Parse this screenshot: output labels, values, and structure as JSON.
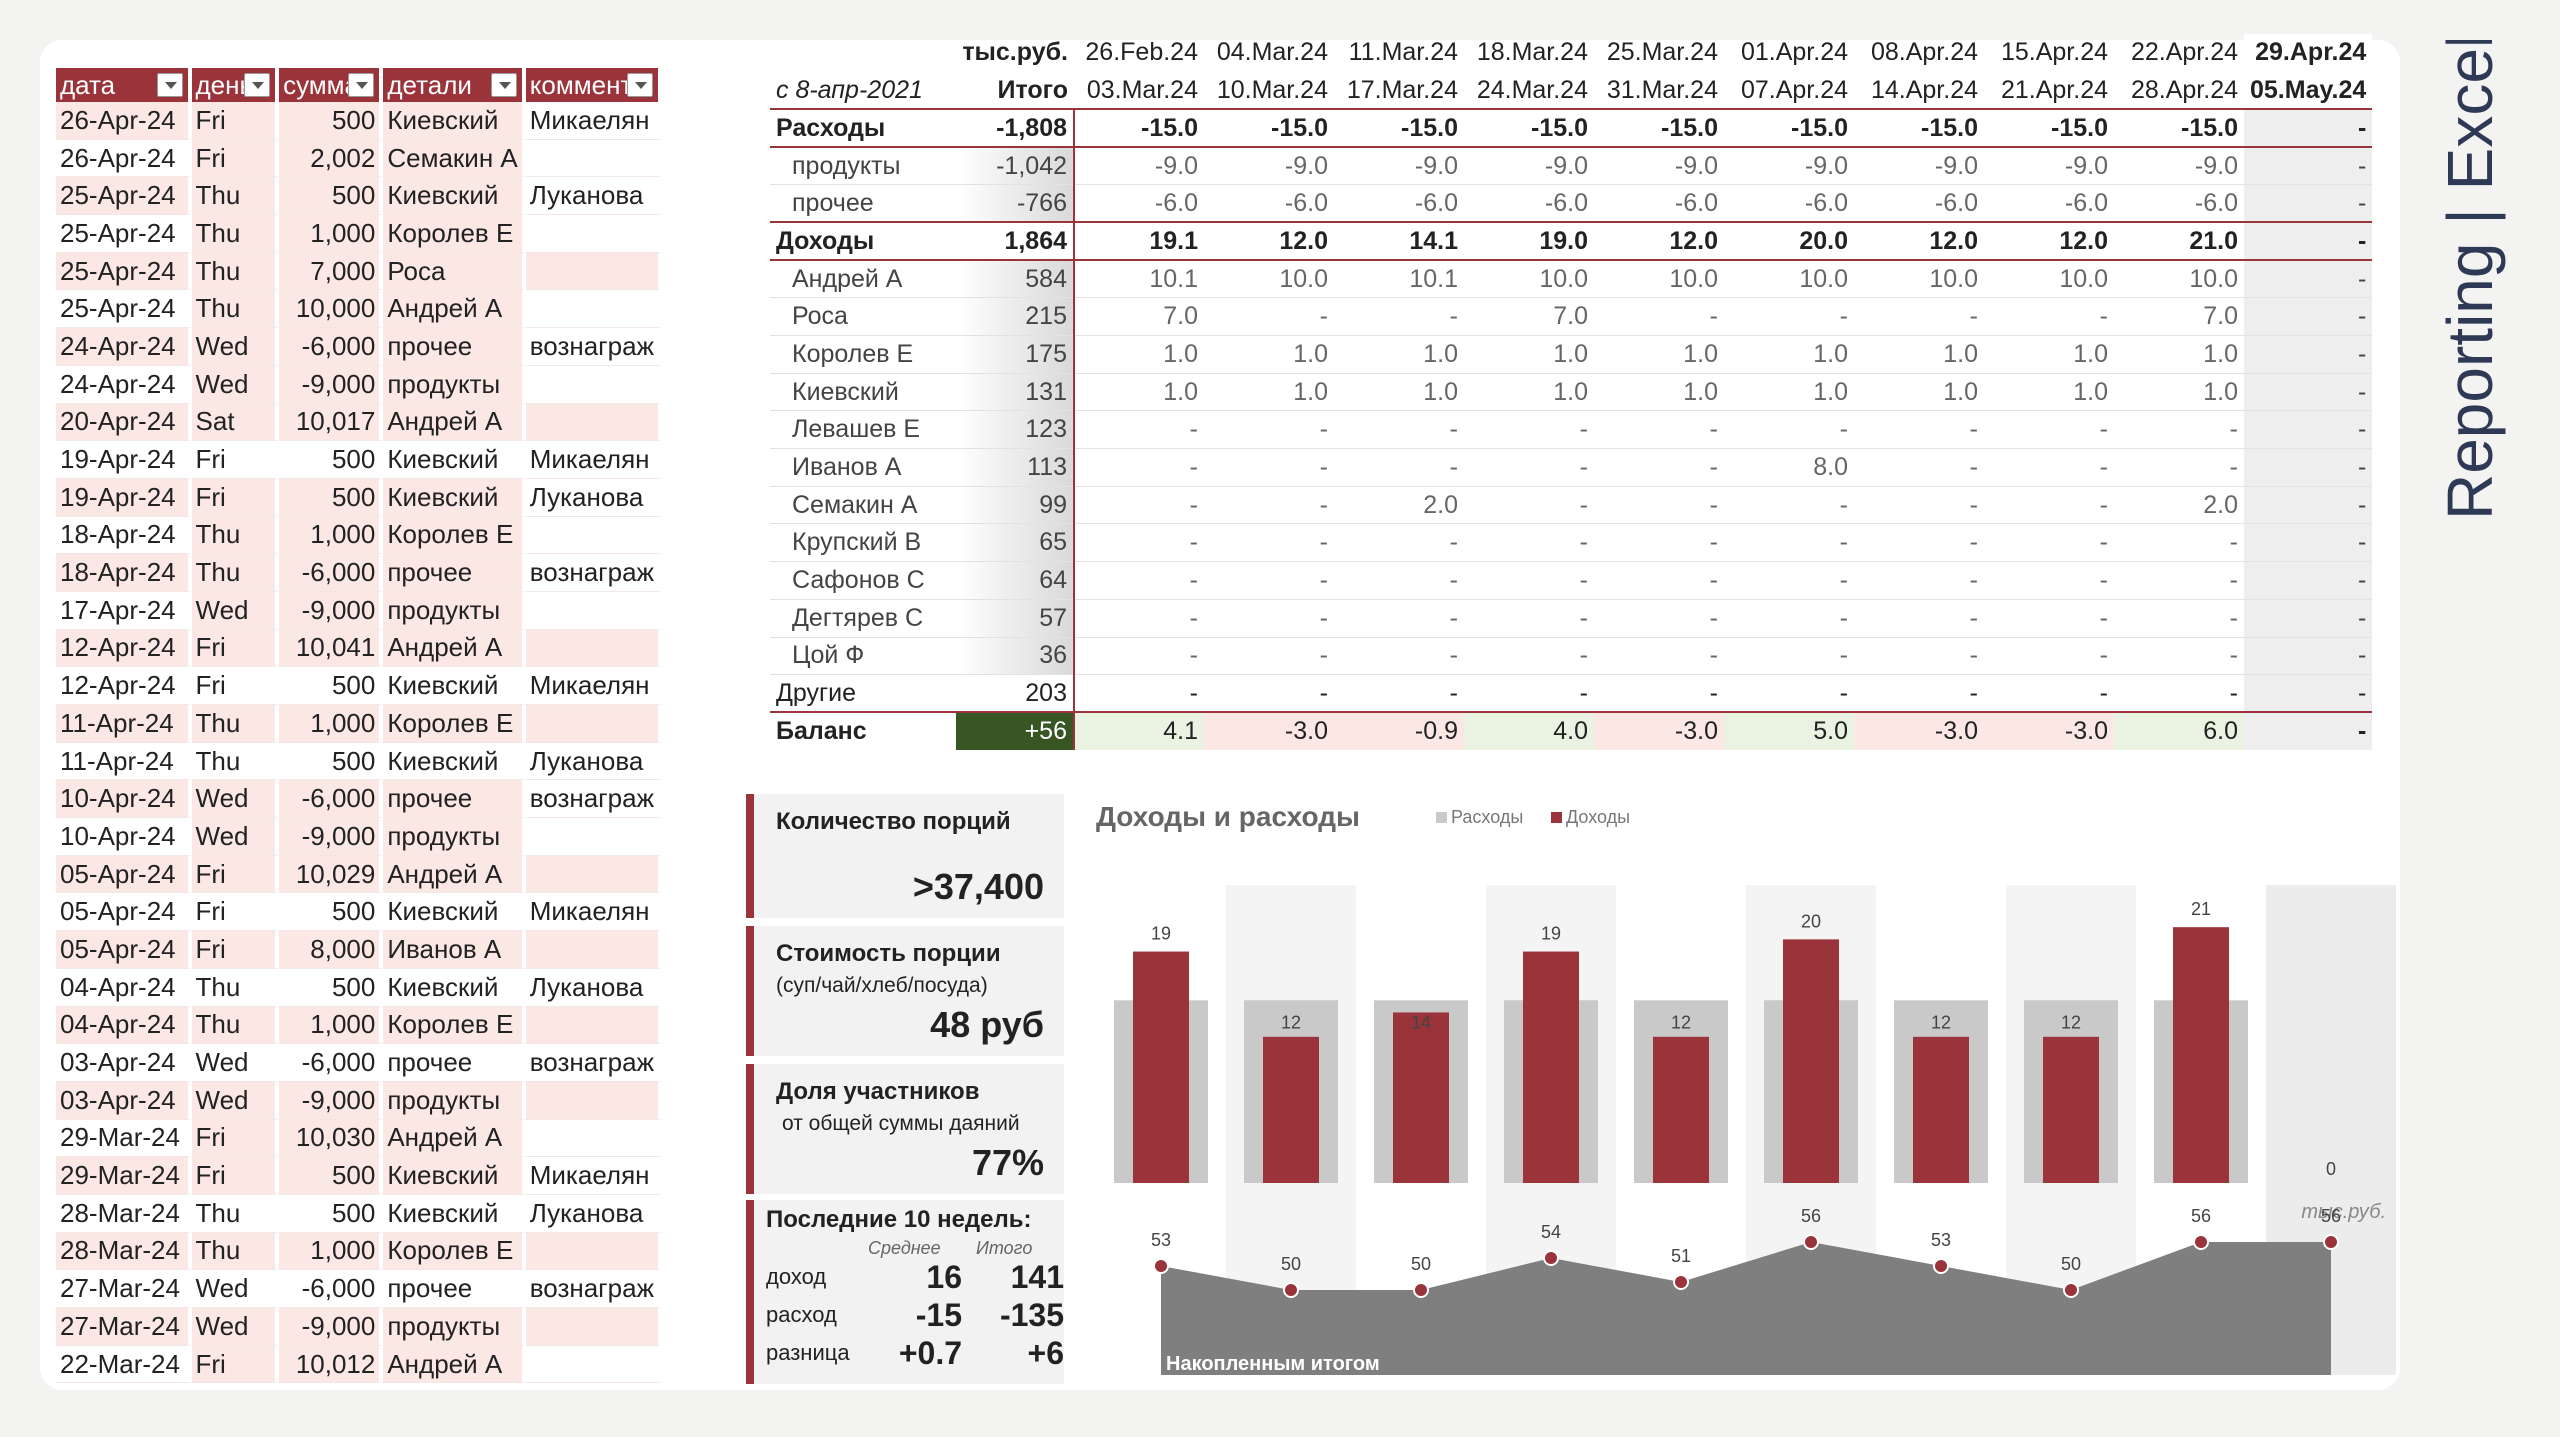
{
  "left_table": {
    "headers": [
      "дата",
      "день",
      "сумма",
      "детали",
      "коммент"
    ],
    "rows": [
      [
        "26-Apr-24",
        "Fri",
        "500",
        "Киевский",
        "Микаелян"
      ],
      [
        "26-Apr-24",
        "Fri",
        "2,002",
        "Семакин А",
        ""
      ],
      [
        "25-Apr-24",
        "Thu",
        "500",
        "Киевский",
        "Луканова"
      ],
      [
        "25-Apr-24",
        "Thu",
        "1,000",
        "Королев Е",
        ""
      ],
      [
        "25-Apr-24",
        "Thu",
        "7,000",
        "Роса",
        ""
      ],
      [
        "25-Apr-24",
        "Thu",
        "10,000",
        "Андрей А",
        ""
      ],
      [
        "24-Apr-24",
        "Wed",
        "-6,000",
        "прочее",
        "вознаграж"
      ],
      [
        "24-Apr-24",
        "Wed",
        "-9,000",
        "продукты",
        ""
      ],
      [
        "20-Apr-24",
        "Sat",
        "10,017",
        "Андрей А",
        ""
      ],
      [
        "19-Apr-24",
        "Fri",
        "500",
        "Киевский",
        "Микаелян"
      ],
      [
        "19-Apr-24",
        "Fri",
        "500",
        "Киевский",
        "Луканова"
      ],
      [
        "18-Apr-24",
        "Thu",
        "1,000",
        "Королев Е",
        ""
      ],
      [
        "18-Apr-24",
        "Thu",
        "-6,000",
        "прочее",
        "вознаграж"
      ],
      [
        "17-Apr-24",
        "Wed",
        "-9,000",
        "продукты",
        ""
      ],
      [
        "12-Apr-24",
        "Fri",
        "10,041",
        "Андрей А",
        ""
      ],
      [
        "12-Apr-24",
        "Fri",
        "500",
        "Киевский",
        "Микаелян"
      ],
      [
        "11-Apr-24",
        "Thu",
        "1,000",
        "Королев Е",
        ""
      ],
      [
        "11-Apr-24",
        "Thu",
        "500",
        "Киевский",
        "Луканова"
      ],
      [
        "10-Apr-24",
        "Wed",
        "-6,000",
        "прочее",
        "вознаграж"
      ],
      [
        "10-Apr-24",
        "Wed",
        "-9,000",
        "продукты",
        ""
      ],
      [
        "05-Apr-24",
        "Fri",
        "10,029",
        "Андрей А",
        ""
      ],
      [
        "05-Apr-24",
        "Fri",
        "500",
        "Киевский",
        "Микаелян"
      ],
      [
        "05-Apr-24",
        "Fri",
        "8,000",
        "Иванов А",
        ""
      ],
      [
        "04-Apr-24",
        "Thu",
        "500",
        "Киевский",
        "Луканова"
      ],
      [
        "04-Apr-24",
        "Thu",
        "1,000",
        "Королев Е",
        ""
      ],
      [
        "03-Apr-24",
        "Wed",
        "-6,000",
        "прочее",
        "вознаграж"
      ],
      [
        "03-Apr-24",
        "Wed",
        "-9,000",
        "продукты",
        ""
      ],
      [
        "29-Mar-24",
        "Fri",
        "10,030",
        "Андрей А",
        ""
      ],
      [
        "29-Mar-24",
        "Fri",
        "500",
        "Киевский",
        "Микаелян"
      ],
      [
        "28-Mar-24",
        "Thu",
        "500",
        "Киевский",
        "Луканова"
      ],
      [
        "28-Mar-24",
        "Thu",
        "1,000",
        "Королев Е",
        ""
      ],
      [
        "27-Mar-24",
        "Wed",
        "-6,000",
        "прочее",
        "вознаграж"
      ],
      [
        "27-Mar-24",
        "Wed",
        "-9,000",
        "продукты",
        ""
      ],
      [
        "22-Mar-24",
        "Fri",
        "10,012",
        "Андрей А",
        ""
      ]
    ]
  },
  "report": {
    "unit": "тыс.руб.",
    "since": "с 8-апр-2021",
    "total_label": "Итого",
    "week_start": [
      "26.Feb.24",
      "04.Mar.24",
      "11.Mar.24",
      "18.Mar.24",
      "25.Mar.24",
      "01.Apr.24",
      "08.Apr.24",
      "15.Apr.24",
      "22.Apr.24",
      "29.Apr.24"
    ],
    "week_end": [
      "03.Mar.24",
      "10.Mar.24",
      "17.Mar.24",
      "24.Mar.24",
      "31.Mar.24",
      "07.Apr.24",
      "14.Apr.24",
      "21.Apr.24",
      "28.Apr.24",
      "05.May.24"
    ],
    "rows": [
      {
        "label": "Расходы",
        "total": "-1,808",
        "vals": [
          "-15.0",
          "-15.0",
          "-15.0",
          "-15.0",
          "-15.0",
          "-15.0",
          "-15.0",
          "-15.0",
          "-15.0",
          "-"
        ],
        "kind": "grp"
      },
      {
        "label": "продукты",
        "total": "-1,042",
        "vals": [
          "-9.0",
          "-9.0",
          "-9.0",
          "-9.0",
          "-9.0",
          "-9.0",
          "-9.0",
          "-9.0",
          "-9.0",
          "-"
        ],
        "kind": "sub"
      },
      {
        "label": "прочее",
        "total": "-766",
        "vals": [
          "-6.0",
          "-6.0",
          "-6.0",
          "-6.0",
          "-6.0",
          "-6.0",
          "-6.0",
          "-6.0",
          "-6.0",
          "-"
        ],
        "kind": "sub"
      },
      {
        "label": "Доходы",
        "total": "1,864",
        "vals": [
          "19.1",
          "12.0",
          "14.1",
          "19.0",
          "12.0",
          "20.0",
          "12.0",
          "12.0",
          "21.0",
          "-"
        ],
        "kind": "grp"
      },
      {
        "label": "Андрей А",
        "total": "584",
        "vals": [
          "10.1",
          "10.0",
          "10.1",
          "10.0",
          "10.0",
          "10.0",
          "10.0",
          "10.0",
          "10.0",
          "-"
        ],
        "kind": "sub"
      },
      {
        "label": "Роса",
        "total": "215",
        "vals": [
          "7.0",
          "-",
          "-",
          "7.0",
          "-",
          "-",
          "-",
          "-",
          "7.0",
          "-"
        ],
        "kind": "sub"
      },
      {
        "label": "Королев Е",
        "total": "175",
        "vals": [
          "1.0",
          "1.0",
          "1.0",
          "1.0",
          "1.0",
          "1.0",
          "1.0",
          "1.0",
          "1.0",
          "-"
        ],
        "kind": "sub"
      },
      {
        "label": "Киевский",
        "total": "131",
        "vals": [
          "1.0",
          "1.0",
          "1.0",
          "1.0",
          "1.0",
          "1.0",
          "1.0",
          "1.0",
          "1.0",
          "-"
        ],
        "kind": "sub"
      },
      {
        "label": "Левашев Е",
        "total": "123",
        "vals": [
          "-",
          "-",
          "-",
          "-",
          "-",
          "-",
          "-",
          "-",
          "-",
          "-"
        ],
        "kind": "sub"
      },
      {
        "label": "Иванов А",
        "total": "113",
        "vals": [
          "-",
          "-",
          "-",
          "-",
          "-",
          "8.0",
          "-",
          "-",
          "-",
          "-"
        ],
        "kind": "sub"
      },
      {
        "label": "Семакин А",
        "total": "99",
        "vals": [
          "-",
          "-",
          "2.0",
          "-",
          "-",
          "-",
          "-",
          "-",
          "2.0",
          "-"
        ],
        "kind": "sub"
      },
      {
        "label": "Крупский В",
        "total": "65",
        "vals": [
          "-",
          "-",
          "-",
          "-",
          "-",
          "-",
          "-",
          "-",
          "-",
          "-"
        ],
        "kind": "sub"
      },
      {
        "label": "Сафонов С",
        "total": "64",
        "vals": [
          "-",
          "-",
          "-",
          "-",
          "-",
          "-",
          "-",
          "-",
          "-",
          "-"
        ],
        "kind": "sub"
      },
      {
        "label": "Дегтярев С",
        "total": "57",
        "vals": [
          "-",
          "-",
          "-",
          "-",
          "-",
          "-",
          "-",
          "-",
          "-",
          "-"
        ],
        "kind": "sub"
      },
      {
        "label": "Цой Ф",
        "total": "36",
        "vals": [
          "-",
          "-",
          "-",
          "-",
          "-",
          "-",
          "-",
          "-",
          "-",
          "-"
        ],
        "kind": "sub"
      },
      {
        "label": "Другие",
        "total": "203",
        "vals": [
          "-",
          "-",
          "-",
          "-",
          "-",
          "-",
          "-",
          "-",
          "-",
          "-"
        ],
        "kind": "oth"
      }
    ],
    "balance": {
      "label": "Баланс",
      "total": "+56",
      "vals": [
        "4.1",
        "-3.0",
        "-0.9",
        "4.0",
        "-3.0",
        "5.0",
        "-3.0",
        "-3.0",
        "6.0",
        "-"
      ]
    }
  },
  "kpi": {
    "portions_title": "Количество порций",
    "portions_value": ">37,400",
    "cost_title": "Стоимость порции",
    "cost_sub": "(суп/чай/хлеб/посуда)",
    "cost_value": "48 руб",
    "share_title": "Доля участников",
    "share_sub": "от общей суммы даяний",
    "share_value": "77%",
    "weeks_title": "Последние 10 недель:",
    "col_avg": "Среднее",
    "col_total": "Итого",
    "rows": [
      [
        "доход",
        "16",
        "141"
      ],
      [
        "расход",
        "-15",
        "-135"
      ],
      [
        "разница",
        "+0.7",
        "+6"
      ]
    ]
  },
  "chart_data": {
    "type": "bar",
    "title": "Доходы и расходы",
    "unit_note": "тыс.руб.",
    "cumulative_label": "Накопленным итогом",
    "series": [
      {
        "name": "Расходы",
        "color": "#c9c9c9",
        "values": [
          15,
          15,
          15,
          15,
          15,
          15,
          15,
          15,
          15,
          0
        ]
      },
      {
        "name": "Доходы",
        "color": "#9b333b",
        "values": [
          19,
          12,
          14,
          19,
          12,
          20,
          12,
          12,
          21,
          0
        ]
      }
    ],
    "cumulative": [
      53,
      50,
      50,
      54,
      51,
      56,
      53,
      50,
      56,
      56
    ]
  },
  "brand": "Reporting | Excel",
  "colors": {
    "accent": "#9b333b",
    "balance_bg": "#375623"
  }
}
